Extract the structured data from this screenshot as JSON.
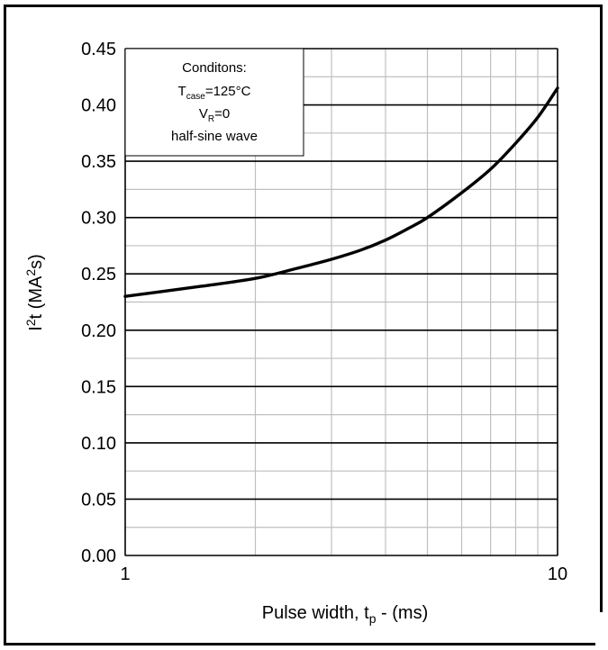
{
  "chart_data": {
    "type": "line",
    "xscale": "log",
    "xlim": [
      1,
      10
    ],
    "ylim": [
      0,
      0.45
    ],
    "xticks": [
      1,
      10
    ],
    "xtick_labels": [
      "1",
      "10"
    ],
    "yticks": [
      0,
      0.05,
      0.1,
      0.15,
      0.2,
      0.25,
      0.3,
      0.35,
      0.4,
      0.45
    ],
    "ytick_labels": [
      "0.00",
      "0.05",
      "0.10",
      "0.15",
      "0.20",
      "0.25",
      "0.30",
      "0.35",
      "0.40",
      "0.45"
    ],
    "xlabel": {
      "main": "Pulse width, t",
      "sub": "p",
      "tail": " -  (ms)"
    },
    "ylabel": {
      "main": "I",
      "sup1": "2",
      "mid": "t (MA",
      "sup2": "2",
      "tail": "s)"
    },
    "grid": {
      "major": true,
      "minor": true
    },
    "series": [
      {
        "x": [
          1,
          1.2,
          1.5,
          2,
          2.5,
          3,
          3.5,
          4,
          4.5,
          5,
          6,
          7,
          8,
          9,
          10
        ],
        "y": [
          0.23,
          0.234,
          0.239,
          0.246,
          0.255,
          0.263,
          0.271,
          0.28,
          0.29,
          0.3,
          0.322,
          0.343,
          0.366,
          0.389,
          0.415
        ]
      }
    ],
    "annotation": {
      "placement": "top-left",
      "title": "Conditons:",
      "line1": {
        "main": "T",
        "sub": "case",
        "tail": "=125°C"
      },
      "line2": {
        "main": "V",
        "sub": "R",
        "tail": "=0"
      },
      "line3": "half-sine wave"
    },
    "colors": {
      "line": "#000000",
      "major_grid": "#000000",
      "minor_grid": "#bfbfbf"
    }
  }
}
